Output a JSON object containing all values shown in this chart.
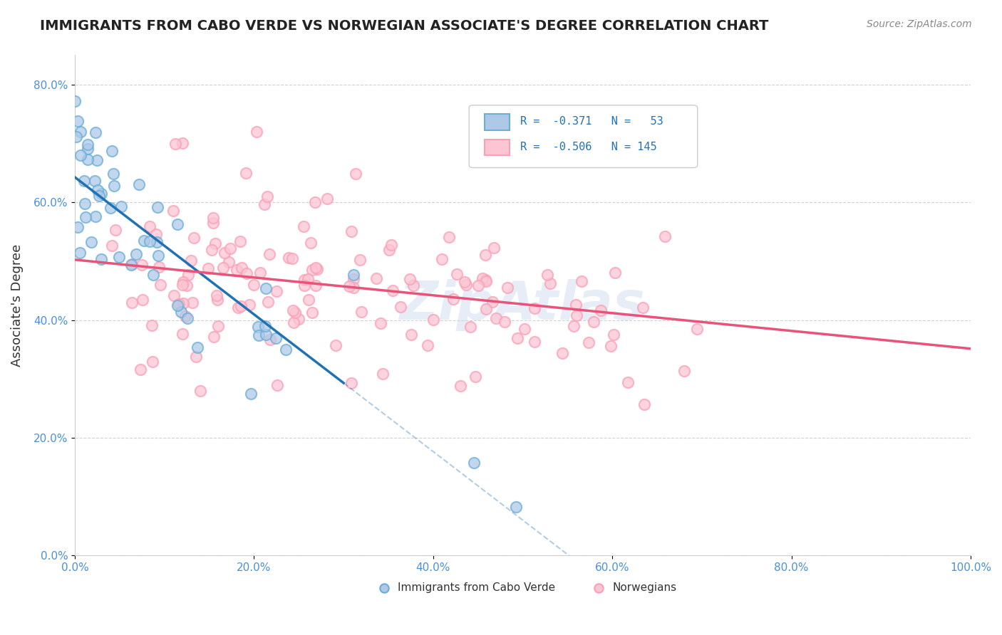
{
  "title": "IMMIGRANTS FROM CABO VERDE VS NORWEGIAN ASSOCIATE'S DEGREE CORRELATION CHART",
  "source_text": "Source: ZipAtlas.com",
  "ylabel": "Associate's Degree",
  "xlim": [
    0.0,
    1.0
  ],
  "ylim": [
    0.0,
    0.85
  ],
  "x_ticks": [
    0.0,
    0.2,
    0.4,
    0.6,
    0.8,
    1.0
  ],
  "x_tick_labels": [
    "0.0%",
    "20.0%",
    "40.0%",
    "60.0%",
    "80.0%",
    "100.0%"
  ],
  "y_ticks": [
    0.0,
    0.2,
    0.4,
    0.6,
    0.8
  ],
  "y_tick_labels": [
    "0.0%",
    "20.0%",
    "40.0%",
    "60.0%",
    "80.0%"
  ],
  "cabo_fill": "#aec9e8",
  "cabo_edge": "#6baed6",
  "norwegian_fill": "#fcc5d4",
  "norwegian_edge": "#fa9fb5",
  "trend_cabo_color": "#2171b5",
  "trend_norwegian_color": "#e8537a",
  "watermark": "ZipAtlas",
  "cabo_N": 53,
  "norwegian_N": 145,
  "cabo_seed": 42,
  "norwegian_seed": 99
}
